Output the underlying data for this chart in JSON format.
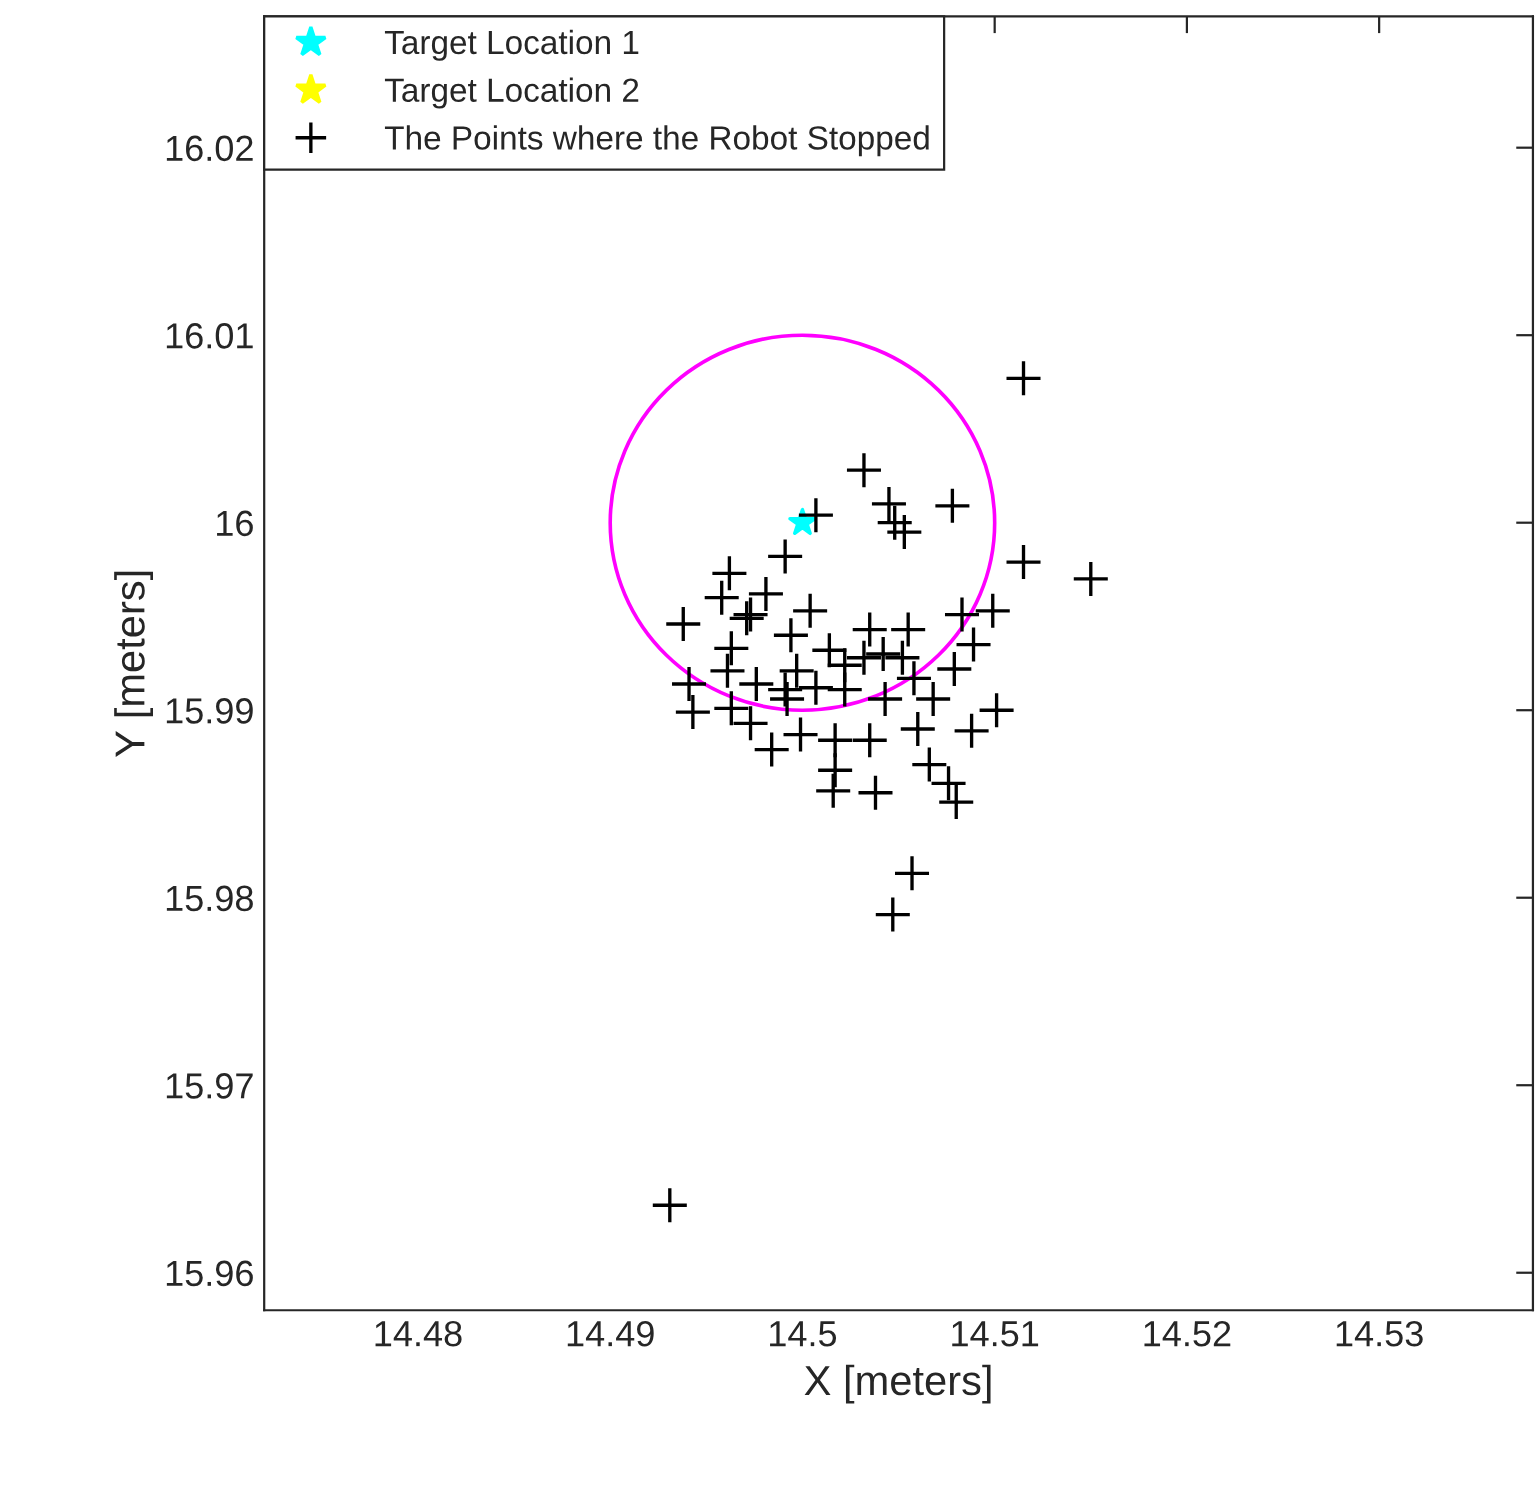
{
  "chart_data": {
    "type": "scatter",
    "xlabel": "X [meters]",
    "ylabel": "Y [meters]",
    "xlim": [
      14.472,
      14.538
    ],
    "ylim": [
      15.958,
      16.027
    ],
    "xticks": [
      14.48,
      14.49,
      14.5,
      14.51,
      14.52,
      14.53
    ],
    "yticks": [
      15.96,
      15.97,
      15.98,
      15.99,
      16,
      16.01,
      16.02
    ],
    "grid": false,
    "legend": "top left",
    "series": [
      {
        "name": "Target Location 1",
        "color": "#00ffff",
        "marker": "star",
        "x": [
          14.5
        ],
        "values": [
          16
        ]
      },
      {
        "name": "Target Location 2",
        "color": "#ffff00",
        "marker": "star"
      },
      {
        "name": "The Points where the Robot Stopped",
        "color": "#000000",
        "marker": "cross",
        "x": [
          14.5115,
          14.5032,
          14.5007,
          14.5045,
          14.5048,
          14.5053,
          14.5078,
          14.5115,
          14.515,
          14.4991,
          14.4962,
          14.4958,
          14.4981,
          14.4938,
          14.4973,
          14.5083,
          14.5099,
          14.4963,
          14.4961,
          14.4941,
          14.4943,
          14.4963,
          14.4973,
          14.4984,
          14.4999,
          14.5017,
          14.5035,
          14.5017,
          14.5016,
          14.5038,
          14.506,
          14.5066,
          14.5076,
          14.508,
          14.5088,
          14.5101,
          14.5079,
          14.5089,
          14.5057,
          14.5047,
          14.4976,
          14.4992,
          14.5007,
          14.5022,
          14.5043,
          14.5068,
          14.5058,
          14.4994,
          14.5014,
          14.5022,
          14.5035,
          14.5055,
          14.5052,
          14.5004,
          14.4971,
          14.5032,
          14.5042,
          14.4997,
          14.4991,
          14.4931
        ],
        "values": [
          16.0077,
          16.0028,
          16.0004,
          16.001,
          16,
          15.9995,
          16.0009,
          15.9979,
          15.997,
          15.9982,
          15.9973,
          15.996,
          15.9962,
          15.9946,
          15.9951,
          15.9951,
          15.9953,
          15.9933,
          15.9921,
          15.9914,
          15.9899,
          15.9901,
          15.9893,
          15.9879,
          15.9887,
          15.9884,
          15.9884,
          15.9868,
          15.9857,
          15.9856,
          15.989,
          15.9871,
          15.9861,
          15.9851,
          15.9889,
          15.99,
          15.9922,
          15.9935,
          15.9813,
          15.9791,
          15.9914,
          15.9906,
          15.9912,
          15.9911,
          15.9906,
          15.9906,
          15.9917,
          15.994,
          15.9932,
          15.9924,
          15.9943,
          15.9943,
          15.9928,
          15.9953,
          15.9949,
          15.9928,
          15.993,
          15.9921,
          15.9911,
          15.9636
        ]
      }
    ]
  }
}
